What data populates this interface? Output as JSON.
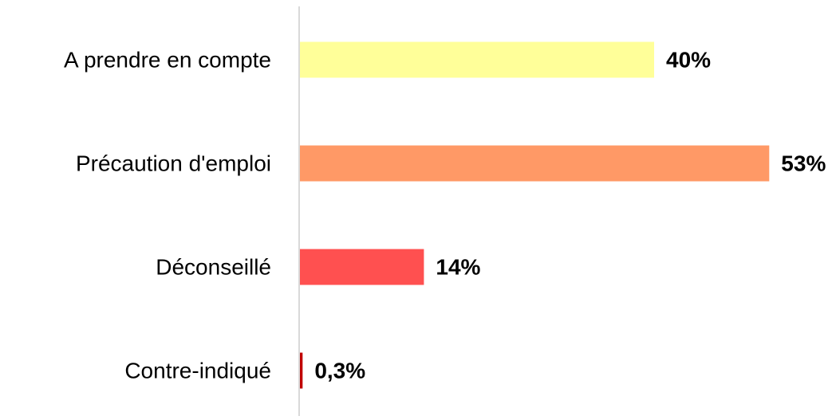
{
  "chart_data": {
    "type": "hbar",
    "categories": [
      "A prendre en compte",
      "Précaution d'emploi",
      "Déconseillé",
      "Contre-indiqué"
    ],
    "values": [
      40,
      53,
      14,
      0.3
    ],
    "value_labels": [
      "40%",
      "53%",
      "14%",
      "0,3%"
    ],
    "colors": [
      "#ffff99",
      "#ff9966",
      "#ff5050",
      "#c00000"
    ]
  }
}
